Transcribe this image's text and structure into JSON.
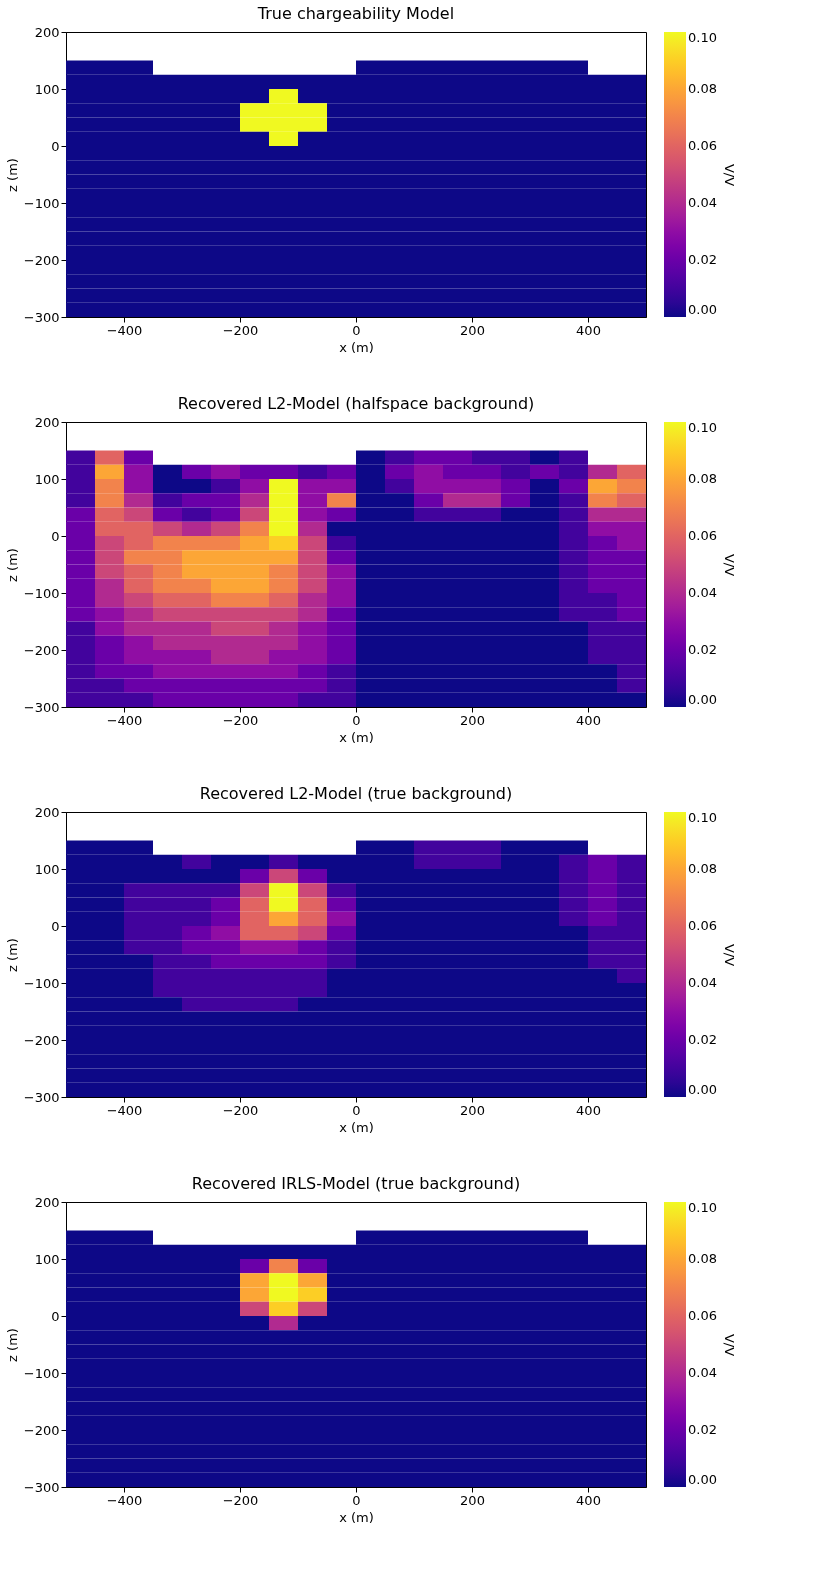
{
  "chart_data": [
    {
      "type": "heatmap",
      "title": "True chargeability Model",
      "xlabel": "x (m)",
      "ylabel": "z (m)",
      "clabel": "V/V",
      "x": [
        -475,
        -425,
        -375,
        -325,
        -275,
        -225,
        -175,
        -125,
        -75,
        -25,
        25,
        75,
        125,
        175,
        225,
        275,
        325,
        375,
        425,
        475
      ],
      "y": [
        137.5,
        112.5,
        87.5,
        62.5,
        37.5,
        12.5,
        -12.5,
        -37.5,
        -62.5,
        -87.5,
        -112.5,
        -137.5,
        -162.5,
        -187.5,
        -212.5,
        -237.5,
        -262.5,
        -287.5
      ],
      "cells": [
        [
          0,
          0,
          0,
          null,
          null,
          null,
          null,
          null,
          null,
          null,
          0,
          0,
          0,
          0,
          0,
          0,
          0,
          0,
          null,
          null
        ],
        [
          0,
          0,
          0,
          0,
          0,
          0,
          0,
          0,
          0,
          0,
          0,
          0,
          0,
          0,
          0,
          0,
          0,
          0,
          0,
          0
        ],
        [
          0,
          0,
          0,
          0,
          0,
          0,
          0,
          0.1,
          0,
          0,
          0,
          0,
          0,
          0,
          0,
          0,
          0,
          0,
          0,
          0
        ],
        [
          0,
          0,
          0,
          0,
          0,
          0,
          0.1,
          0.1,
          0.1,
          0,
          0,
          0,
          0,
          0,
          0,
          0,
          0,
          0,
          0,
          0
        ],
        [
          0,
          0,
          0,
          0,
          0,
          0,
          0.1,
          0.1,
          0.1,
          0,
          0,
          0,
          0,
          0,
          0,
          0,
          0,
          0,
          0,
          0
        ],
        [
          0,
          0,
          0,
          0,
          0,
          0,
          0,
          0.1,
          0,
          0,
          0,
          0,
          0,
          0,
          0,
          0,
          0,
          0,
          0,
          0
        ],
        [
          0,
          0,
          0,
          0,
          0,
          0,
          0,
          0,
          0,
          0,
          0,
          0,
          0,
          0,
          0,
          0,
          0,
          0,
          0,
          0
        ],
        [
          0,
          0,
          0,
          0,
          0,
          0,
          0,
          0,
          0,
          0,
          0,
          0,
          0,
          0,
          0,
          0,
          0,
          0,
          0,
          0
        ],
        [
          0,
          0,
          0,
          0,
          0,
          0,
          0,
          0,
          0,
          0,
          0,
          0,
          0,
          0,
          0,
          0,
          0,
          0,
          0,
          0
        ],
        [
          0,
          0,
          0,
          0,
          0,
          0,
          0,
          0,
          0,
          0,
          0,
          0,
          0,
          0,
          0,
          0,
          0,
          0,
          0,
          0
        ],
        [
          0,
          0,
          0,
          0,
          0,
          0,
          0,
          0,
          0,
          0,
          0,
          0,
          0,
          0,
          0,
          0,
          0,
          0,
          0,
          0
        ],
        [
          0,
          0,
          0,
          0,
          0,
          0,
          0,
          0,
          0,
          0,
          0,
          0,
          0,
          0,
          0,
          0,
          0,
          0,
          0,
          0
        ],
        [
          0,
          0,
          0,
          0,
          0,
          0,
          0,
          0,
          0,
          0,
          0,
          0,
          0,
          0,
          0,
          0,
          0,
          0,
          0,
          0
        ],
        [
          0,
          0,
          0,
          0,
          0,
          0,
          0,
          0,
          0,
          0,
          0,
          0,
          0,
          0,
          0,
          0,
          0,
          0,
          0,
          0
        ],
        [
          0,
          0,
          0,
          0,
          0,
          0,
          0,
          0,
          0,
          0,
          0,
          0,
          0,
          0,
          0,
          0,
          0,
          0,
          0,
          0
        ],
        [
          0,
          0,
          0,
          0,
          0,
          0,
          0,
          0,
          0,
          0,
          0,
          0,
          0,
          0,
          0,
          0,
          0,
          0,
          0,
          0
        ],
        [
          0,
          0,
          0,
          0,
          0,
          0,
          0,
          0,
          0,
          0,
          0,
          0,
          0,
          0,
          0,
          0,
          0,
          0,
          0,
          0
        ],
        [
          0,
          0,
          0,
          0,
          0,
          0,
          0,
          0,
          0,
          0,
          0,
          0,
          0,
          0,
          0,
          0,
          0,
          0,
          0,
          0
        ]
      ],
      "xlim": [
        -500,
        500
      ],
      "ylim": [
        -300,
        200
      ],
      "xticks": [
        -400,
        -200,
        0,
        200,
        400
      ],
      "yticks": [
        -300,
        -200,
        -100,
        0,
        100,
        200
      ],
      "clim": [
        0,
        0.1
      ],
      "cticks": [
        {
          "value": 0,
          "label": "0.00"
        },
        {
          "value": 0.02,
          "label": "0.02"
        },
        {
          "value": 0.04,
          "label": "0.04"
        },
        {
          "value": 0.06,
          "label": "0.06"
        },
        {
          "value": 0.08,
          "label": "0.08"
        },
        {
          "value": 0.1,
          "label": "0.10"
        }
      ]
    },
    {
      "type": "heatmap",
      "title": "Recovered L2-Model (halfspace background)",
      "xlabel": "x (m)",
      "ylabel": "z (m)",
      "clabel": "V/V",
      "x": [
        -475,
        -425,
        -375,
        -325,
        -275,
        -225,
        -175,
        -125,
        -75,
        -25,
        25,
        75,
        125,
        175,
        225,
        275,
        325,
        375,
        425,
        475
      ],
      "y": [
        137.5,
        112.5,
        87.5,
        62.5,
        37.5,
        12.5,
        -12.5,
        -37.5,
        -62.5,
        -87.5,
        -112.5,
        -137.5,
        -162.5,
        -187.5,
        -212.5,
        -237.5,
        -262.5,
        -287.5
      ],
      "cells": [
        [
          0.01,
          0.06,
          0.02,
          null,
          null,
          null,
          null,
          null,
          null,
          null,
          0,
          0.01,
          0.02,
          0.02,
          0.01,
          0.01,
          0,
          0.01,
          null,
          null
        ],
        [
          0.01,
          0.08,
          0.03,
          0,
          0.02,
          0.03,
          0.02,
          0.02,
          0.01,
          0.02,
          0,
          0.02,
          0.03,
          0.02,
          0.02,
          0.01,
          0.02,
          0.01,
          0.04,
          0.06
        ],
        [
          0.01,
          0.07,
          0.03,
          0,
          0,
          0.01,
          0.03,
          0.1,
          0.03,
          0.03,
          0,
          0.01,
          0.03,
          0.03,
          0.03,
          0.02,
          0,
          0.02,
          0.08,
          0.07
        ],
        [
          0.01,
          0.07,
          0.04,
          0.01,
          0.02,
          0.02,
          0.04,
          0.1,
          0.03,
          0.07,
          0,
          0,
          0.02,
          0.04,
          0.04,
          0.02,
          0,
          0.01,
          0.07,
          0.06
        ],
        [
          0.02,
          0.06,
          0.05,
          0.02,
          0.01,
          0.02,
          0.05,
          0.1,
          0.03,
          0.02,
          0,
          0,
          0.01,
          0.01,
          0.01,
          0,
          0,
          0.01,
          0.04,
          0.04
        ],
        [
          0.02,
          0.06,
          0.06,
          0.05,
          0.04,
          0.05,
          0.07,
          0.1,
          0.04,
          0,
          0,
          0,
          0,
          0,
          0,
          0,
          0,
          0.01,
          0.03,
          0.03
        ],
        [
          0.02,
          0.05,
          0.06,
          0.07,
          0.07,
          0.07,
          0.08,
          0.09,
          0.05,
          0.01,
          0,
          0,
          0,
          0,
          0,
          0,
          0,
          0.01,
          0.02,
          0.03
        ],
        [
          0.02,
          0.05,
          0.07,
          0.07,
          0.08,
          0.08,
          0.08,
          0.08,
          0.05,
          0.02,
          0,
          0,
          0,
          0,
          0,
          0,
          0,
          0.01,
          0.02,
          0.02
        ],
        [
          0.02,
          0.05,
          0.06,
          0.07,
          0.08,
          0.08,
          0.08,
          0.07,
          0.05,
          0.03,
          0,
          0,
          0,
          0,
          0,
          0,
          0,
          0.01,
          0.02,
          0.02
        ],
        [
          0.02,
          0.04,
          0.06,
          0.07,
          0.07,
          0.08,
          0.08,
          0.07,
          0.05,
          0.03,
          0,
          0,
          0,
          0,
          0,
          0,
          0,
          0.01,
          0.02,
          0.02
        ],
        [
          0.02,
          0.04,
          0.05,
          0.06,
          0.06,
          0.07,
          0.07,
          0.06,
          0.04,
          0.03,
          0,
          0,
          0,
          0,
          0,
          0,
          0,
          0.01,
          0.01,
          0.02
        ],
        [
          0.02,
          0.03,
          0.04,
          0.05,
          0.05,
          0.05,
          0.05,
          0.05,
          0.04,
          0.02,
          0,
          0,
          0,
          0,
          0,
          0,
          0,
          0.01,
          0.01,
          0.02
        ],
        [
          0.01,
          0.03,
          0.04,
          0.04,
          0.04,
          0.05,
          0.05,
          0.04,
          0.03,
          0.02,
          0,
          0,
          0,
          0,
          0,
          0,
          0,
          0,
          0.01,
          0.01
        ],
        [
          0.01,
          0.02,
          0.03,
          0.04,
          0.04,
          0.04,
          0.04,
          0.04,
          0.03,
          0.02,
          0,
          0,
          0,
          0,
          0,
          0,
          0,
          0,
          0.01,
          0.01
        ],
        [
          0.01,
          0.02,
          0.03,
          0.03,
          0.03,
          0.04,
          0.04,
          0.03,
          0.03,
          0.02,
          0,
          0,
          0,
          0,
          0,
          0,
          0,
          0,
          0.01,
          0.01
        ],
        [
          0.01,
          0.02,
          0.02,
          0.03,
          0.03,
          0.03,
          0.03,
          0.03,
          0.02,
          0.01,
          0,
          0,
          0,
          0,
          0,
          0,
          0,
          0,
          0,
          0.01
        ],
        [
          0.01,
          0.01,
          0.02,
          0.02,
          0.02,
          0.02,
          0.02,
          0.02,
          0.02,
          0.01,
          0,
          0,
          0,
          0,
          0,
          0,
          0,
          0,
          0,
          0.01
        ],
        [
          0.01,
          0.01,
          0.01,
          0.02,
          0.02,
          0.02,
          0.02,
          0.02,
          0.01,
          0.01,
          0,
          0,
          0,
          0,
          0,
          0,
          0,
          0,
          0,
          0
        ]
      ],
      "xlim": [
        -500,
        500
      ],
      "ylim": [
        -300,
        200
      ],
      "xticks": [
        -400,
        -200,
        0,
        200,
        400
      ],
      "yticks": [
        -300,
        -200,
        -100,
        0,
        100,
        200
      ],
      "clim": [
        0,
        0.1
      ],
      "cticks": [
        {
          "value": 0,
          "label": "0.00"
        },
        {
          "value": 0.02,
          "label": "0.02"
        },
        {
          "value": 0.04,
          "label": "0.04"
        },
        {
          "value": 0.06,
          "label": "0.06"
        },
        {
          "value": 0.08,
          "label": "0.08"
        },
        {
          "value": 0.1,
          "label": "0.10"
        }
      ]
    },
    {
      "type": "heatmap",
      "title": "Recovered L2-Model (true background)",
      "xlabel": "x (m)",
      "ylabel": "z (m)",
      "clabel": "V/V",
      "x": [
        -475,
        -425,
        -375,
        -325,
        -275,
        -225,
        -175,
        -125,
        -75,
        -25,
        25,
        75,
        125,
        175,
        225,
        275,
        325,
        375,
        425,
        475
      ],
      "y": [
        137.5,
        112.5,
        87.5,
        62.5,
        37.5,
        12.5,
        -12.5,
        -37.5,
        -62.5,
        -87.5,
        -112.5,
        -137.5,
        -162.5,
        -187.5,
        -212.5,
        -237.5,
        -262.5,
        -287.5
      ],
      "cells": [
        [
          0,
          0,
          0,
          null,
          null,
          null,
          null,
          null,
          null,
          null,
          0,
          0,
          0.01,
          0.01,
          0.01,
          0,
          0,
          0,
          null,
          null
        ],
        [
          0,
          0,
          0,
          0,
          0.01,
          0,
          0,
          0.01,
          0,
          0,
          0,
          0,
          0.01,
          0.01,
          0.01,
          0,
          0,
          0.01,
          0.02,
          0.01
        ],
        [
          0,
          0,
          0,
          0,
          0,
          0,
          0.02,
          0.05,
          0.02,
          0,
          0,
          0,
          0,
          0,
          0,
          0,
          0,
          0.01,
          0.02,
          0.01
        ],
        [
          0,
          0,
          0.01,
          0.01,
          0.01,
          0.01,
          0.05,
          0.1,
          0.05,
          0.01,
          0,
          0,
          0,
          0,
          0,
          0,
          0,
          0.01,
          0.02,
          0.01
        ],
        [
          0,
          0,
          0.01,
          0.01,
          0.01,
          0.02,
          0.06,
          0.1,
          0.06,
          0.02,
          0,
          0,
          0,
          0,
          0,
          0,
          0,
          0.01,
          0.02,
          0.01
        ],
        [
          0,
          0,
          0.01,
          0.01,
          0.01,
          0.02,
          0.06,
          0.08,
          0.06,
          0.03,
          0,
          0,
          0,
          0,
          0,
          0,
          0,
          0.01,
          0.02,
          0.01
        ],
        [
          0,
          0,
          0.01,
          0.01,
          0.02,
          0.03,
          0.06,
          0.06,
          0.05,
          0.02,
          0,
          0,
          0,
          0,
          0,
          0,
          0,
          0,
          0.01,
          0.01
        ],
        [
          0,
          0,
          0.01,
          0.01,
          0.02,
          0.02,
          0.03,
          0.03,
          0.02,
          0.01,
          0,
          0,
          0,
          0,
          0,
          0,
          0,
          0,
          0.01,
          0.01
        ],
        [
          0,
          0,
          0,
          0.01,
          0.01,
          0.02,
          0.02,
          0.02,
          0.02,
          0.01,
          0,
          0,
          0,
          0,
          0,
          0,
          0,
          0,
          0.01,
          0.01
        ],
        [
          0,
          0,
          0,
          0.01,
          0.01,
          0.01,
          0.01,
          0.01,
          0.01,
          0,
          0,
          0,
          0,
          0,
          0,
          0,
          0,
          0,
          0,
          0.01
        ],
        [
          0,
          0,
          0,
          0.01,
          0.01,
          0.01,
          0.01,
          0.01,
          0.01,
          0,
          0,
          0,
          0,
          0,
          0,
          0,
          0,
          0,
          0,
          0
        ],
        [
          0,
          0,
          0,
          0,
          0.01,
          0.01,
          0.01,
          0.01,
          0,
          0,
          0,
          0,
          0,
          0,
          0,
          0,
          0,
          0,
          0,
          0
        ],
        [
          0,
          0,
          0,
          0,
          0,
          0,
          0,
          0,
          0,
          0,
          0,
          0,
          0,
          0,
          0,
          0,
          0,
          0,
          0,
          0
        ],
        [
          0,
          0,
          0,
          0,
          0,
          0,
          0,
          0,
          0,
          0,
          0,
          0,
          0,
          0,
          0,
          0,
          0,
          0,
          0,
          0
        ],
        [
          0,
          0,
          0,
          0,
          0,
          0,
          0,
          0,
          0,
          0,
          0,
          0,
          0,
          0,
          0,
          0,
          0,
          0,
          0,
          0
        ],
        [
          0,
          0,
          0,
          0,
          0,
          0,
          0,
          0,
          0,
          0,
          0,
          0,
          0,
          0,
          0,
          0,
          0,
          0,
          0,
          0
        ],
        [
          0,
          0,
          0,
          0,
          0,
          0,
          0,
          0,
          0,
          0,
          0,
          0,
          0,
          0,
          0,
          0,
          0,
          0,
          0,
          0
        ],
        [
          0,
          0,
          0,
          0,
          0,
          0,
          0,
          0,
          0,
          0,
          0,
          0,
          0,
          0,
          0,
          0,
          0,
          0,
          0,
          0
        ]
      ],
      "xlim": [
        -500,
        500
      ],
      "ylim": [
        -300,
        200
      ],
      "xticks": [
        -400,
        -200,
        0,
        200,
        400
      ],
      "yticks": [
        -300,
        -200,
        -100,
        0,
        100,
        200
      ],
      "clim": [
        0,
        0.1
      ],
      "cticks": [
        {
          "value": 0,
          "label": "0.00"
        },
        {
          "value": 0.02,
          "label": "0.02"
        },
        {
          "value": 0.04,
          "label": "0.04"
        },
        {
          "value": 0.06,
          "label": "0.06"
        },
        {
          "value": 0.08,
          "label": "0.08"
        },
        {
          "value": 0.1,
          "label": "0.10"
        }
      ]
    },
    {
      "type": "heatmap",
      "title": "Recovered IRLS-Model (true background)",
      "xlabel": "x (m)",
      "ylabel": "z (m)",
      "clabel": "V/V",
      "x": [
        -475,
        -425,
        -375,
        -325,
        -275,
        -225,
        -175,
        -125,
        -75,
        -25,
        25,
        75,
        125,
        175,
        225,
        275,
        325,
        375,
        425,
        475
      ],
      "y": [
        137.5,
        112.5,
        87.5,
        62.5,
        37.5,
        12.5,
        -12.5,
        -37.5,
        -62.5,
        -87.5,
        -112.5,
        -137.5,
        -162.5,
        -187.5,
        -212.5,
        -237.5,
        -262.5,
        -287.5
      ],
      "cells": [
        [
          0,
          0,
          0,
          null,
          null,
          null,
          null,
          null,
          null,
          null,
          0,
          0,
          0,
          0,
          0,
          0,
          0,
          0,
          null,
          null
        ],
        [
          0,
          0,
          0,
          0,
          0,
          0,
          0,
          0,
          0,
          0,
          0,
          0,
          0,
          0,
          0,
          0,
          0,
          0,
          0,
          0
        ],
        [
          0,
          0,
          0,
          0,
          0,
          0,
          0.02,
          0.07,
          0.02,
          0,
          0,
          0,
          0,
          0,
          0,
          0,
          0,
          0,
          0,
          0
        ],
        [
          0,
          0,
          0,
          0,
          0,
          0,
          0.08,
          0.1,
          0.08,
          0,
          0,
          0,
          0,
          0,
          0,
          0,
          0,
          0,
          0,
          0
        ],
        [
          0,
          0,
          0,
          0,
          0,
          0,
          0.08,
          0.1,
          0.09,
          0,
          0,
          0,
          0,
          0,
          0,
          0,
          0,
          0,
          0,
          0
        ],
        [
          0,
          0,
          0,
          0,
          0,
          0,
          0.05,
          0.09,
          0.05,
          0,
          0,
          0,
          0,
          0,
          0,
          0,
          0,
          0,
          0,
          0
        ],
        [
          0,
          0,
          0,
          0,
          0,
          0,
          0,
          0.04,
          0,
          0,
          0,
          0,
          0,
          0,
          0,
          0,
          0,
          0,
          0,
          0
        ],
        [
          0,
          0,
          0,
          0,
          0,
          0,
          0,
          0,
          0,
          0,
          0,
          0,
          0,
          0,
          0,
          0,
          0,
          0,
          0,
          0
        ],
        [
          0,
          0,
          0,
          0,
          0,
          0,
          0,
          0,
          0,
          0,
          0,
          0,
          0,
          0,
          0,
          0,
          0,
          0,
          0,
          0
        ],
        [
          0,
          0,
          0,
          0,
          0,
          0,
          0,
          0,
          0,
          0,
          0,
          0,
          0,
          0,
          0,
          0,
          0,
          0,
          0,
          0
        ],
        [
          0,
          0,
          0,
          0,
          0,
          0,
          0,
          0,
          0,
          0,
          0,
          0,
          0,
          0,
          0,
          0,
          0,
          0,
          0,
          0
        ],
        [
          0,
          0,
          0,
          0,
          0,
          0,
          0,
          0,
          0,
          0,
          0,
          0,
          0,
          0,
          0,
          0,
          0,
          0,
          0,
          0
        ],
        [
          0,
          0,
          0,
          0,
          0,
          0,
          0,
          0,
          0,
          0,
          0,
          0,
          0,
          0,
          0,
          0,
          0,
          0,
          0,
          0
        ],
        [
          0,
          0,
          0,
          0,
          0,
          0,
          0,
          0,
          0,
          0,
          0,
          0,
          0,
          0,
          0,
          0,
          0,
          0,
          0,
          0
        ],
        [
          0,
          0,
          0,
          0,
          0,
          0,
          0,
          0,
          0,
          0,
          0,
          0,
          0,
          0,
          0,
          0,
          0,
          0,
          0,
          0
        ],
        [
          0,
          0,
          0,
          0,
          0,
          0,
          0,
          0,
          0,
          0,
          0,
          0,
          0,
          0,
          0,
          0,
          0,
          0,
          0,
          0
        ],
        [
          0,
          0,
          0,
          0,
          0,
          0,
          0,
          0,
          0,
          0,
          0,
          0,
          0,
          0,
          0,
          0,
          0,
          0,
          0,
          0
        ],
        [
          0,
          0,
          0,
          0,
          0,
          0,
          0,
          0,
          0,
          0,
          0,
          0,
          0,
          0,
          0,
          0,
          0,
          0,
          0,
          0
        ]
      ],
      "xlim": [
        -500,
        500
      ],
      "ylim": [
        -300,
        200
      ],
      "xticks": [
        -400,
        -200,
        0,
        200,
        400
      ],
      "yticks": [
        -300,
        -200,
        -100,
        0,
        100,
        200
      ],
      "clim": [
        0,
        0.1
      ],
      "cticks": [
        {
          "value": 0,
          "label": "0.00"
        },
        {
          "value": 0.02,
          "label": "0.02"
        },
        {
          "value": 0.04,
          "label": "0.04"
        },
        {
          "value": 0.06,
          "label": "0.06"
        },
        {
          "value": 0.08,
          "label": "0.08"
        },
        {
          "value": 0.1,
          "label": "0.10"
        }
      ]
    }
  ]
}
